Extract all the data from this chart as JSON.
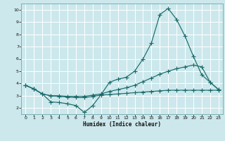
{
  "xlabel": "Humidex (Indice chaleur)",
  "bg_color": "#cce8ec",
  "grid_color": "#ffffff",
  "line_color": "#1a6b6b",
  "xlim": [
    -0.5,
    23.5
  ],
  "ylim": [
    1.5,
    10.5
  ],
  "yticks": [
    2,
    3,
    4,
    5,
    6,
    7,
    8,
    9,
    10
  ],
  "xticks": [
    0,
    1,
    2,
    3,
    4,
    5,
    6,
    7,
    8,
    9,
    10,
    11,
    12,
    13,
    14,
    15,
    16,
    17,
    18,
    19,
    20,
    21,
    22,
    23
  ],
  "line1_x": [
    0,
    1,
    2,
    3,
    4,
    5,
    6,
    7,
    8,
    9,
    10,
    11,
    12,
    13,
    14,
    15,
    16,
    17,
    18,
    19,
    20,
    21,
    22,
    23
  ],
  "line1_y": [
    3.85,
    3.55,
    3.15,
    2.5,
    2.45,
    2.35,
    2.2,
    1.65,
    2.2,
    3.1,
    4.1,
    4.35,
    4.5,
    5.0,
    6.0,
    7.3,
    9.6,
    10.1,
    9.2,
    7.85,
    6.2,
    4.7,
    4.1,
    3.5
  ],
  "line2_x": [
    0,
    1,
    2,
    3,
    4,
    5,
    6,
    7,
    8,
    9,
    10,
    11,
    12,
    13,
    14,
    15,
    16,
    17,
    18,
    19,
    20,
    21,
    22,
    23
  ],
  "line2_y": [
    3.85,
    3.55,
    3.15,
    3.0,
    3.0,
    2.95,
    2.95,
    2.95,
    3.05,
    3.15,
    3.35,
    3.5,
    3.65,
    3.85,
    4.15,
    4.45,
    4.75,
    5.0,
    5.2,
    5.35,
    5.5,
    5.35,
    4.1,
    3.5
  ],
  "line3_x": [
    0,
    1,
    2,
    3,
    4,
    5,
    6,
    7,
    8,
    9,
    10,
    11,
    12,
    13,
    14,
    15,
    16,
    17,
    18,
    19,
    20,
    21,
    22,
    23
  ],
  "line3_y": [
    3.85,
    3.55,
    3.15,
    3.0,
    2.95,
    2.9,
    2.85,
    2.85,
    2.95,
    3.05,
    3.1,
    3.15,
    3.2,
    3.25,
    3.3,
    3.35,
    3.4,
    3.45,
    3.45,
    3.45,
    3.45,
    3.45,
    3.45,
    3.45
  ]
}
